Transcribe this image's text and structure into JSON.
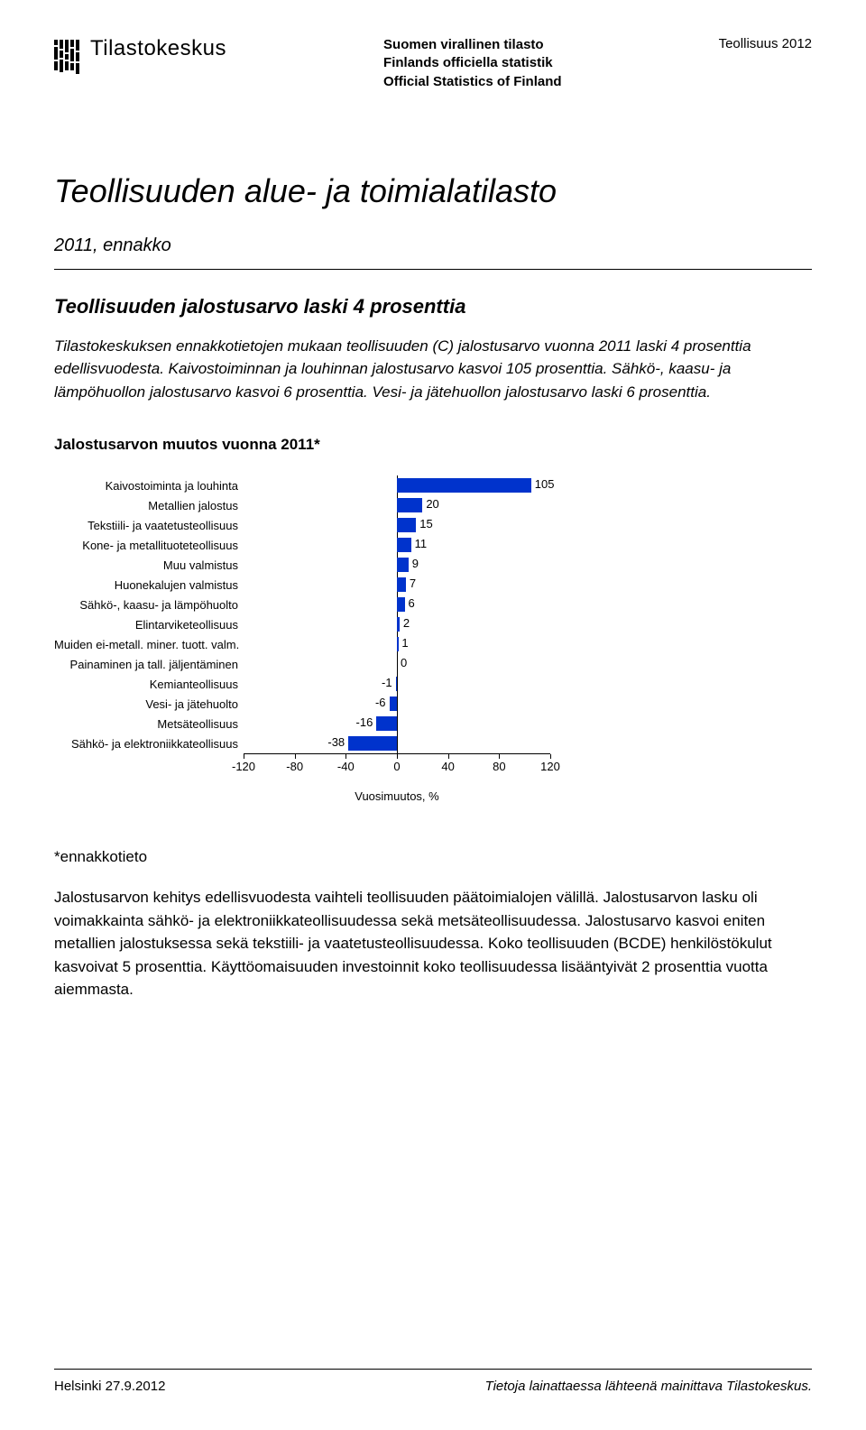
{
  "header": {
    "logo_text": "Tilastokeskus",
    "official_lines": [
      "Suomen virallinen tilasto",
      "Finlands officiella statistik",
      "Official Statistics of Finland"
    ],
    "topic": "Teollisuus 2012"
  },
  "title": "Teollisuuden alue- ja toimialatilasto",
  "subtitle": "2011, ennakko",
  "section_heading": "Teollisuuden jalostusarvo laski 4 prosenttia",
  "intro_paragraph": "Tilastokeskuksen ennakkotietojen mukaan teollisuuden (C) jalostusarvo vuonna 2011 laski 4 prosenttia edellisvuodesta. Kaivostoiminnan ja louhinnan jalostusarvo kasvoi 105 prosenttia. Sähkö-, kaasu- ja lämpöhuollon jalostusarvo kasvoi 6 prosenttia. Vesi- ja jätehuollon jalostusarvo laski 6 prosenttia.",
  "chart": {
    "title": "Jalostusarvon muutos vuonna 2011*",
    "type": "bar-horizontal",
    "categories": [
      "Kaivostoiminta ja louhinta",
      "Metallien jalostus",
      "Tekstiili- ja vaatetusteollisuus",
      "Kone- ja metallituoteteollisuus",
      "Muu valmistus",
      "Huonekalujen valmistus",
      "Sähkö-, kaasu- ja lämpöhuolto",
      "Elintarviketeollisuus",
      "Muiden ei-metall. miner. tuott. valm.",
      "Painaminen ja tall. jäljentäminen",
      "Kemianteollisuus",
      "Vesi- ja jätehuolto",
      "Metsäteollisuus",
      "Sähkö- ja elektroniikkateollisuus"
    ],
    "values": [
      105,
      20,
      15,
      11,
      9,
      7,
      6,
      2,
      1,
      0,
      -1,
      -6,
      -16,
      -38
    ],
    "bar_color": "#0033cc",
    "xlim": [
      -120,
      120
    ],
    "xticks": [
      -120,
      -80,
      -40,
      0,
      40,
      80,
      120
    ],
    "xlabel": "Vuosimuutos, %",
    "background_color": "#ffffff",
    "label_fontsize": 13
  },
  "footnote": "*ennakkotieto",
  "body_paragraph": "Jalostusarvon kehitys edellisvuodesta vaihteli teollisuuden päätoimialojen välillä. Jalostusarvon lasku oli voimakkainta sähkö- ja elektroniikkateollisuudessa sekä metsäteollisuudessa. Jalostusarvo kasvoi eniten metallien jalostuksessa sekä tekstiili- ja vaatetusteollisuudessa. Koko teollisuuden (BCDE) henkilöstökulut kasvoivat 5 prosenttia. Käyttöomaisuuden investoinnit koko teollisuudessa lisääntyivät 2 prosenttia vuotta aiemmasta.",
  "footer": {
    "left": "Helsinki 27.9.2012",
    "right": "Tietoja lainattaessa lähteenä mainittava Tilastokeskus."
  }
}
